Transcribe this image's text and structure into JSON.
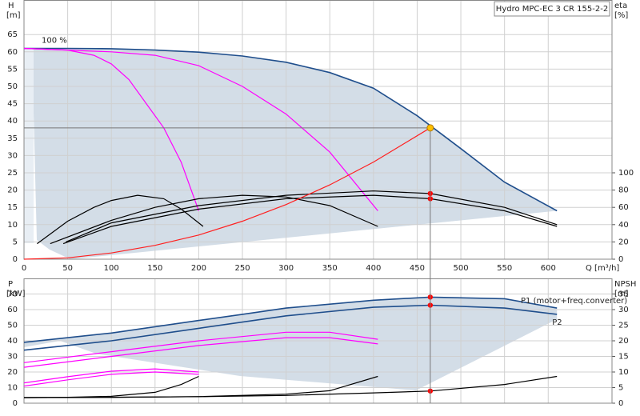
{
  "chart_data": [
    {
      "type": "line",
      "title": "Hydro MPC-EC 3 CR 155-2-2",
      "ylabel": "H",
      "yunit": "[m]",
      "y2label": "eta",
      "y2unit": "[%]",
      "xlabel": "Q [m³/h]",
      "xlim": [
        0,
        673
      ],
      "xticks": [
        0,
        50,
        100,
        150,
        200,
        250,
        300,
        350,
        400,
        450,
        500,
        550,
        600
      ],
      "ylim": [
        0,
        75
      ],
      "yticks": [
        0,
        5,
        10,
        15,
        20,
        25,
        30,
        35,
        40,
        45,
        50,
        55,
        60,
        65
      ],
      "y2lim": [
        0,
        300
      ],
      "y2ticks": [
        0,
        20,
        40,
        60,
        80,
        100
      ],
      "grid": true,
      "series": [
        {
          "label": "100 %",
          "color": "#1f4e8c",
          "x": [
            0,
            50,
            100,
            150,
            200,
            250,
            300,
            350,
            400,
            450,
            500,
            550,
            610
          ],
          "values": [
            61,
            61,
            60.9,
            60.5,
            59.9,
            58.8,
            57,
            54,
            49.5,
            41.5,
            32,
            22.3,
            14
          ]
        },
        {
          "color": "#ff00ff",
          "x": [
            0,
            50,
            80,
            100,
            120,
            140,
            160,
            180,
            200
          ],
          "values": [
            61,
            60.5,
            59,
            56.5,
            52,
            45,
            38,
            28,
            14
          ]
        },
        {
          "color": "#ff00ff",
          "x": [
            0,
            100,
            150,
            200,
            250,
            300,
            350,
            405
          ],
          "values": [
            61,
            60,
            59,
            56,
            50,
            42,
            31,
            14
          ]
        },
        {
          "color": "#000000",
          "axis": "y2",
          "x": [
            15,
            50,
            80,
            100,
            130,
            160,
            180,
            205
          ],
          "values": [
            18,
            44,
            60,
            68,
            74,
            70,
            58,
            38
          ]
        },
        {
          "color": "#000000",
          "axis": "y2",
          "x": [
            30,
            100,
            150,
            200,
            250,
            300,
            350,
            405
          ],
          "values": [
            18,
            45,
            60,
            70,
            74,
            72,
            62,
            38
          ]
        },
        {
          "color": "#000000",
          "axis": "y2",
          "x": [
            45,
            100,
            200,
            300,
            400,
            465,
            550,
            610
          ],
          "values": [
            18,
            38,
            58,
            70,
            74,
            70,
            56,
            38
          ]
        },
        {
          "color": "#000000",
          "axis": "y2",
          "x": [
            48,
            100,
            200,
            300,
            400,
            465,
            550,
            610
          ],
          "values": [
            20,
            42,
            62,
            74,
            79,
            76,
            60,
            40
          ]
        },
        {
          "color": "#ff2020",
          "x": [
            0,
            50,
            100,
            150,
            200,
            250,
            300,
            350,
            400,
            465
          ],
          "values": [
            0,
            0.4,
            1.8,
            4,
            7,
            11,
            15.8,
            21.5,
            28.1,
            38
          ]
        },
        {
          "color": "#ff0000",
          "marker": true,
          "axis": "y2",
          "x": [
            465
          ],
          "values": [
            76
          ]
        },
        {
          "color": "#ff0000",
          "marker": true,
          "axis": "y2",
          "x": [
            465
          ],
          "values": [
            70
          ]
        },
        {
          "color": "#ffc000",
          "marker": true,
          "duty": true,
          "x": [
            465
          ],
          "values": [
            38
          ]
        }
      ]
    },
    {
      "type": "line",
      "ylabel": "P",
      "yunit": "[kW]",
      "y2label": "NPSH",
      "y2unit": "[m]",
      "xlim": [
        0,
        673
      ],
      "ylim": [
        0,
        80
      ],
      "yticks": [
        0,
        10,
        20,
        30,
        40,
        50,
        60,
        70
      ],
      "y2lim": [
        0,
        40
      ],
      "y2ticks": [
        0,
        5,
        10,
        15,
        20,
        25,
        30,
        35
      ],
      "grid": true,
      "series": [
        {
          "name": "P1 (motor+freq.converter)",
          "color": "#1f4e8c",
          "x": [
            0,
            100,
            200,
            250,
            300,
            400,
            465,
            550,
            610
          ],
          "values": [
            39,
            45,
            53,
            57,
            61,
            66,
            68,
            67,
            61
          ]
        },
        {
          "name": "P2",
          "color": "#1f4e8c",
          "x": [
            0,
            100,
            200,
            300,
            400,
            465,
            550,
            610
          ],
          "values": [
            34,
            40,
            48,
            56,
            61.5,
            62.8,
            61,
            57
          ]
        },
        {
          "color": "#ff00ff",
          "x": [
            0,
            100,
            200,
            300,
            350,
            405
          ],
          "values": [
            26,
            33,
            40,
            45.5,
            45.5,
            41
          ]
        },
        {
          "color": "#ff00ff",
          "x": [
            0,
            100,
            200,
            300,
            350,
            405
          ],
          "values": [
            23,
            30,
            37,
            42,
            42,
            38
          ]
        },
        {
          "color": "#ff00ff",
          "x": [
            0,
            50,
            100,
            150,
            200
          ],
          "values": [
            13,
            17,
            20.5,
            22,
            20
          ]
        },
        {
          "color": "#ff00ff",
          "x": [
            0,
            50,
            100,
            150,
            200
          ],
          "values": [
            11,
            15,
            18.5,
            20,
            18.5
          ]
        },
        {
          "color": "#000000",
          "axis": "y2",
          "x": [
            0,
            100,
            200,
            300,
            400,
            465,
            550,
            610
          ],
          "values": [
            1.8,
            1.9,
            2.1,
            2.5,
            3.3,
            3.9,
            6,
            8.6
          ]
        },
        {
          "color": "#000000",
          "axis": "y2",
          "x": [
            0,
            100,
            200,
            300,
            350,
            405
          ],
          "values": [
            1.8,
            1.9,
            2.1,
            2.9,
            4,
            8.6
          ]
        },
        {
          "color": "#000000",
          "axis": "y2",
          "x": [
            0,
            50,
            100,
            150,
            180,
            200
          ],
          "values": [
            1.8,
            1.9,
            2.2,
            3.5,
            6,
            8.6
          ]
        },
        {
          "color": "#ff0000",
          "marker": true,
          "x": [
            465
          ],
          "values": [
            68
          ]
        },
        {
          "color": "#ff0000",
          "marker": true,
          "x": [
            465
          ],
          "values": [
            62.8
          ]
        },
        {
          "color": "#ff0000",
          "marker": true,
          "axis": "y2",
          "x": [
            465
          ],
          "values": [
            3.9
          ]
        }
      ]
    }
  ]
}
